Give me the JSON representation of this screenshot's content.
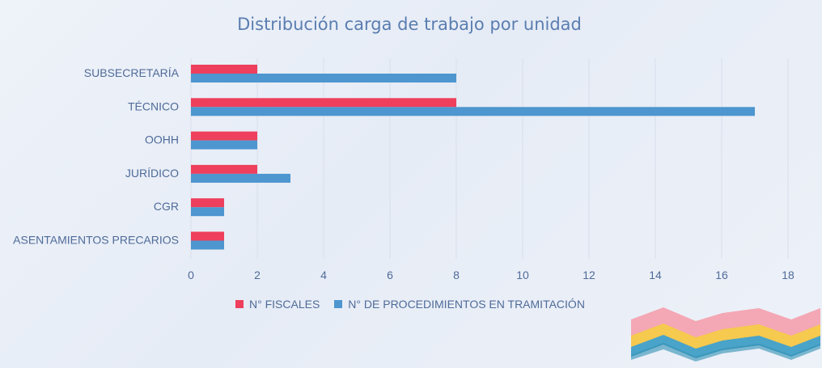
{
  "colors": {
    "fiscales": "#ee3f5c",
    "procedimientos": "#4d96cf",
    "grid": "#d8dfeb",
    "text": "#4f6b99"
  },
  "chart_data": {
    "type": "bar",
    "orientation": "horizontal",
    "title": "Distribución carga de trabajo por unidad",
    "categories": [
      "SUBSECRETARÍA",
      "TÉCNICO",
      "OOHH",
      "JURÍDICO",
      "CGR",
      "ASENTAMIENTOS PRECARIOS"
    ],
    "series": [
      {
        "name": "N° FISCALES",
        "values": [
          2,
          8,
          2,
          2,
          1,
          1
        ]
      },
      {
        "name": "N° DE PROCEDIMIENTOS EN TRAMITACIÓN",
        "values": [
          8,
          17,
          2,
          3,
          1,
          1
        ]
      }
    ],
    "xlim": [
      0,
      18
    ],
    "xticks": [
      "0",
      "2",
      "4",
      "6",
      "8",
      "10",
      "12",
      "14",
      "16",
      "18"
    ],
    "grid": true,
    "legend_position": "bottom"
  },
  "legend": {
    "fiscales_label": "N° FISCALES",
    "procedimientos_label": "N° DE PROCEDIMIENTOS EN TRAMITACIÓN"
  }
}
